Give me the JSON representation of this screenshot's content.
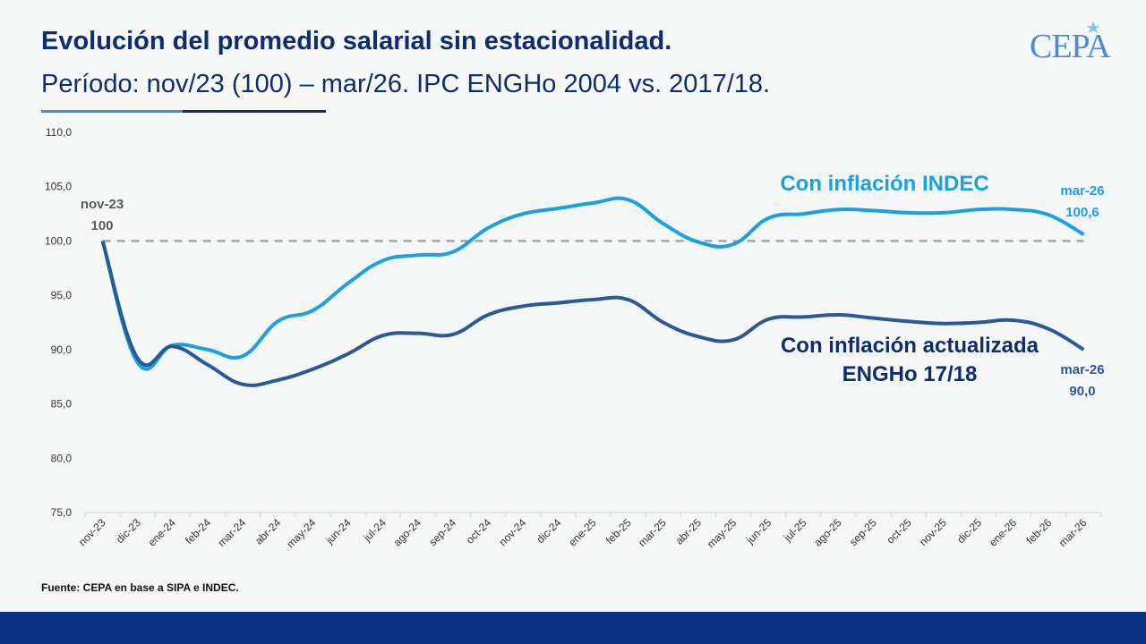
{
  "header": {
    "title": "Evolución del promedio salarial sin estacionalidad.",
    "subtitle": "Período: nov/23 (100) – mar/26. IPC ENGHo 2004 vs. 2017/18."
  },
  "logo": {
    "text": "CEPA"
  },
  "footer": {
    "source": "Fuente: CEPA en base a SIPA e INDEC."
  },
  "colors": {
    "indec": "#1ba1de",
    "engho": "#2a5a94",
    "reference": "#a6a6a6",
    "footer_bar": "#0a3182",
    "title": "#0f2d6b"
  },
  "chart_data": {
    "type": "line",
    "title": "",
    "xlabel": "",
    "ylabel": "",
    "ylim": [
      75,
      110
    ],
    "yticks": [
      "75,0",
      "80,0",
      "85,0",
      "90,0",
      "95,0",
      "100,0",
      "105,0",
      "110,0"
    ],
    "grid": false,
    "reference_line": 100,
    "categories": [
      "nov-23",
      "dic-23",
      "ene-24",
      "feb-24",
      "mar-24",
      "abr-24",
      "may-24",
      "jun-24",
      "jul-24",
      "ago-24",
      "sep-24",
      "oct-24",
      "nov-24",
      "dic-24",
      "ene-25",
      "feb-25",
      "mar-25",
      "abr-25",
      "may-25",
      "jun-25",
      "jul-25",
      "ago-25",
      "sep-25",
      "oct-25",
      "nov-25",
      "dic-25",
      "ene-26",
      "feb-26",
      "mar-26"
    ],
    "series": [
      {
        "name": "Con inflación INDEC",
        "values": [
          100.0,
          88.8,
          90.4,
          90.0,
          89.4,
          92.6,
          93.6,
          96.1,
          98.2,
          98.7,
          99.0,
          101.2,
          102.5,
          103.0,
          103.5,
          103.8,
          101.6,
          99.9,
          99.7,
          102.1,
          102.5,
          102.9,
          102.8,
          102.6,
          102.6,
          102.9,
          102.9,
          102.4,
          100.6
        ]
      },
      {
        "name": "Con inflación actualizada ENGHo 17/18",
        "values": [
          100.0,
          89.2,
          90.3,
          88.6,
          86.8,
          87.2,
          88.2,
          89.6,
          91.3,
          91.5,
          91.4,
          93.2,
          94.0,
          94.3,
          94.6,
          94.6,
          92.5,
          91.2,
          90.9,
          92.8,
          93.0,
          93.2,
          92.9,
          92.6,
          92.4,
          92.5,
          92.7,
          91.9,
          90.0
        ]
      }
    ],
    "series_labels": {
      "indec": "Con inflación INDEC",
      "engho_line1": "Con inflación actualizada",
      "engho_line2": "ENGHo 17/18"
    },
    "annotations": {
      "start_date": "nov-23",
      "start_value": "100",
      "end_indec_date": "mar-26",
      "end_indec_value": "100,6",
      "end_engho_date": "mar-26",
      "end_engho_value": "90,0"
    }
  }
}
